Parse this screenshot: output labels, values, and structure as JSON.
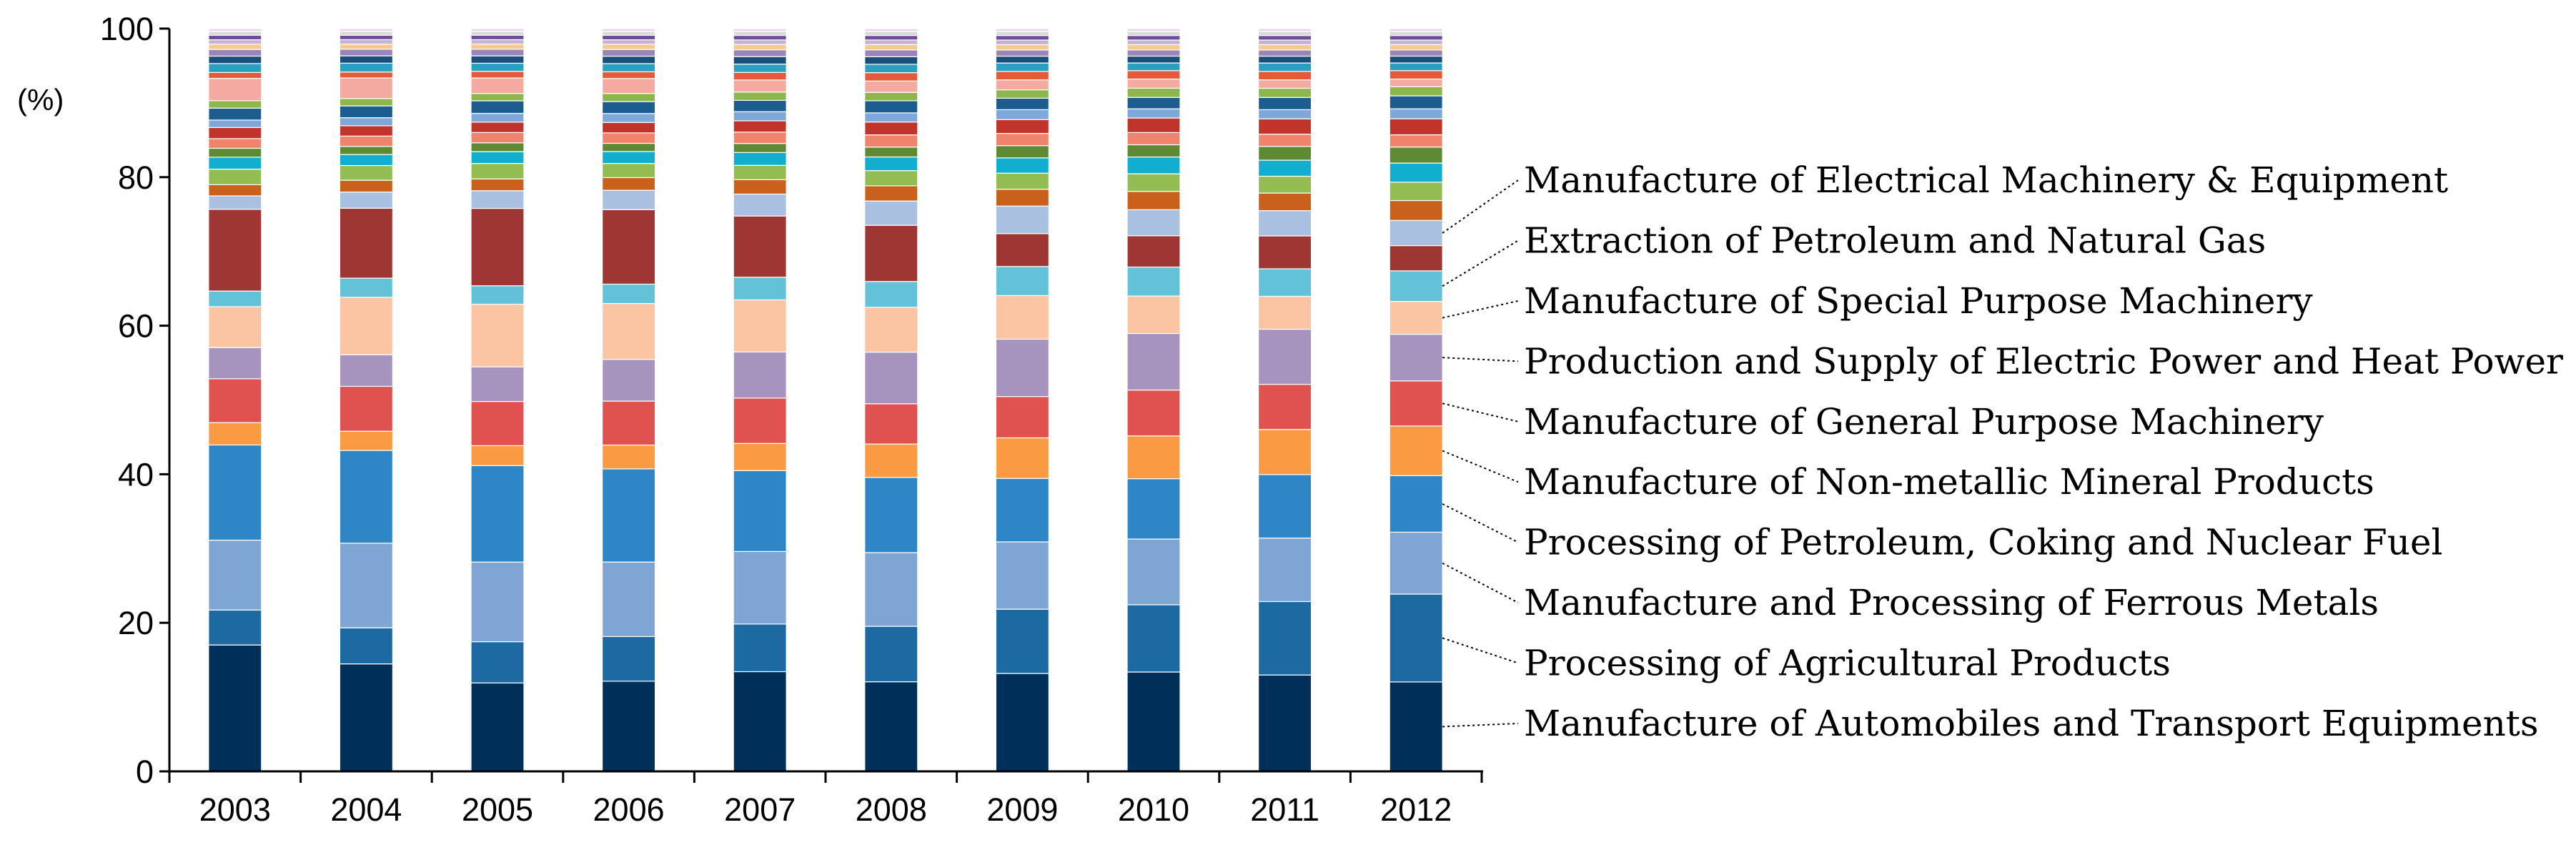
{
  "chart_data": {
    "type": "bar",
    "stacked": true,
    "ylabel": "(%)",
    "ylim": [
      0,
      100
    ],
    "yticks": [
      0,
      20,
      40,
      60,
      80,
      100
    ],
    "categories": [
      "2003",
      "2004",
      "2005",
      "2006",
      "2007",
      "2008",
      "2009",
      "2010",
      "2011",
      "2012"
    ],
    "series": [
      {
        "name": "Manufacture of Automobiles and Transport Equipments",
        "color": "#00305a",
        "labeled": true,
        "values": [
          17.0,
          14.6,
          12.0,
          12.1,
          13.2,
          11.8,
          12.8,
          13.0,
          12.6,
          11.7
        ]
      },
      {
        "name": "Processing of Agricultural Products",
        "color": "#1d6aa3",
        "labeled": true,
        "values": [
          4.7,
          4.9,
          5.6,
          6.0,
          6.3,
          7.3,
          8.4,
          8.8,
          9.6,
          11.5
        ]
      },
      {
        "name": "Manufacture and Processing of Ferrous Metals",
        "color": "#7ea5d3",
        "labeled": true,
        "values": [
          9.4,
          11.5,
          10.8,
          10.0,
          9.6,
          9.7,
          8.8,
          8.6,
          8.3,
          8.1
        ]
      },
      {
        "name": "Processing of Petroleum, Coking and Nuclear Fuel",
        "color": "#2e86c6",
        "labeled": true,
        "values": [
          12.8,
          12.6,
          13.1,
          12.5,
          10.7,
          9.9,
          8.3,
          7.9,
          8.3,
          7.4
        ]
      },
      {
        "name": "Manufacture of Non-metallic Mineral Products",
        "color": "#fa9a43",
        "labeled": true,
        "values": [
          3.0,
          2.6,
          2.7,
          3.2,
          3.6,
          4.4,
          5.3,
          5.6,
          5.9,
          6.5
        ]
      },
      {
        "name": "Manufacture of General Purpose Machinery",
        "color": "#e0524f",
        "labeled": true,
        "values": [
          5.9,
          6.1,
          6.0,
          5.9,
          6.0,
          5.3,
          5.4,
          6.0,
          5.9,
          5.9
        ]
      },
      {
        "name": "Production and Supply of Electric Power and Heat Power",
        "color": "#a694bf",
        "labeled": true,
        "values": [
          4.2,
          4.3,
          4.7,
          5.6,
          6.1,
          6.8,
          7.5,
          7.4,
          7.2,
          6.1
        ]
      },
      {
        "name": "Manufacture of Special Purpose Machinery",
        "color": "#fbc4a3",
        "labeled": true,
        "values": [
          5.5,
          7.8,
          8.5,
          7.5,
          6.9,
          5.9,
          5.7,
          4.9,
          4.3,
          4.3
        ]
      },
      {
        "name": "Extraction of Petroleum and Natural Gas",
        "color": "#63c2d7",
        "labeled": true,
        "values": [
          2.1,
          2.6,
          2.5,
          2.6,
          3.0,
          3.4,
          3.8,
          3.8,
          3.6,
          4.0
        ]
      },
      {
        "name": "",
        "color": "#9e3633",
        "labeled": false,
        "values": [
          11.0,
          9.5,
          10.5,
          10.0,
          8.1,
          7.4,
          4.3,
          4.1,
          4.3,
          3.3
        ]
      },
      {
        "name": "Manufacture of Electrical Machinery & Equipment",
        "color": "#a9c0e0",
        "labeled": true,
        "values": [
          1.8,
          2.2,
          2.4,
          2.6,
          2.9,
          3.2,
          3.6,
          3.4,
          3.3,
          3.3
        ]
      },
      {
        "name": "",
        "color": "#c9611d",
        "labeled": false,
        "values": [
          1.5,
          1.6,
          1.6,
          1.7,
          1.9,
          2.0,
          2.2,
          2.4,
          2.3,
          2.6
        ]
      },
      {
        "name": "",
        "color": "#93bd53",
        "labeled": false,
        "values": [
          2.1,
          2.0,
          2.1,
          1.9,
          1.9,
          2.0,
          2.1,
          2.3,
          2.2,
          2.4
        ]
      },
      {
        "name": "",
        "color": "#12aed0",
        "labeled": false,
        "values": [
          1.6,
          1.5,
          1.6,
          1.6,
          1.7,
          1.8,
          2.0,
          2.2,
          2.1,
          2.5
        ]
      },
      {
        "name": "",
        "color": "#5d8a32",
        "labeled": false,
        "values": [
          1.2,
          1.1,
          1.2,
          1.1,
          1.2,
          1.3,
          1.6,
          1.6,
          1.8,
          2.1
        ]
      },
      {
        "name": "",
        "color": "#f0836b",
        "labeled": false,
        "values": [
          1.3,
          1.4,
          1.4,
          1.4,
          1.5,
          1.6,
          1.6,
          1.6,
          1.6,
          1.6
        ]
      },
      {
        "name": "",
        "color": "#c0342b",
        "labeled": false,
        "values": [
          1.5,
          1.4,
          1.4,
          1.4,
          1.5,
          1.7,
          1.8,
          1.9,
          2.0,
          2.1
        ]
      },
      {
        "name": "",
        "color": "#7fa8d9",
        "labeled": false,
        "values": [
          1.0,
          1.1,
          1.2,
          1.2,
          1.2,
          1.2,
          1.3,
          1.2,
          1.2,
          1.3
        ]
      },
      {
        "name": "",
        "color": "#1c5c8e",
        "labeled": false,
        "values": [
          1.6,
          1.6,
          1.7,
          1.6,
          1.5,
          1.6,
          1.5,
          1.5,
          1.6,
          1.7
        ]
      },
      {
        "name": "",
        "color": "#8db64d",
        "labeled": false,
        "values": [
          1.0,
          1.0,
          1.0,
          1.1,
          1.1,
          1.1,
          1.1,
          1.2,
          1.2,
          1.2
        ]
      },
      {
        "name": "",
        "color": "#f4aaa1",
        "labeled": false,
        "values": [
          3.0,
          2.8,
          2.1,
          2.0,
          1.6,
          1.5,
          1.3,
          1.2,
          1.1,
          1.0
        ]
      },
      {
        "name": "",
        "color": "#e45a3a",
        "labeled": false,
        "values": [
          0.8,
          0.8,
          0.9,
          0.9,
          1.0,
          1.1,
          1.1,
          1.1,
          1.1,
          1.1
        ]
      },
      {
        "name": "",
        "color": "#2a9fc0",
        "labeled": false,
        "values": [
          1.2,
          1.2,
          1.1,
          1.1,
          1.1,
          1.1,
          1.1,
          1.0,
          1.1,
          1.0
        ]
      },
      {
        "name": "",
        "color": "#1a4f7c",
        "labeled": false,
        "values": [
          1.0,
          1.0,
          1.0,
          1.0,
          1.0,
          1.0,
          0.9,
          0.9,
          0.9,
          0.9
        ]
      },
      {
        "name": "",
        "color": "#9a85b8",
        "labeled": false,
        "values": [
          0.9,
          0.9,
          0.9,
          0.9,
          0.9,
          0.9,
          0.8,
          0.8,
          0.8,
          0.8
        ]
      },
      {
        "name": "",
        "color": "#f7c98a",
        "labeled": false,
        "values": [
          0.7,
          0.7,
          0.7,
          0.7,
          0.7,
          0.7,
          0.7,
          0.7,
          0.7,
          0.7
        ]
      },
      {
        "name": "",
        "color": "#c6b2d6",
        "labeled": false,
        "values": [
          0.6,
          0.6,
          0.6,
          0.6,
          0.6,
          0.6,
          0.6,
          0.6,
          0.6,
          0.6
        ]
      },
      {
        "name": "",
        "color": "#6f4e96",
        "labeled": false,
        "values": [
          0.6,
          0.6,
          0.6,
          0.6,
          0.6,
          0.6,
          0.6,
          0.6,
          0.6,
          0.6
        ]
      },
      {
        "name": "",
        "color": "#d9d9d9",
        "labeled": false,
        "values": [
          0.5,
          0.5,
          0.5,
          0.5,
          0.5,
          0.5,
          0.5,
          0.5,
          0.5,
          0.5
        ]
      },
      {
        "name": "",
        "color": "#e8d7ea",
        "labeled": false,
        "values": [
          0.4,
          0.4,
          0.4,
          0.4,
          0.4,
          0.4,
          0.4,
          0.4,
          0.4,
          0.4
        ]
      }
    ]
  }
}
